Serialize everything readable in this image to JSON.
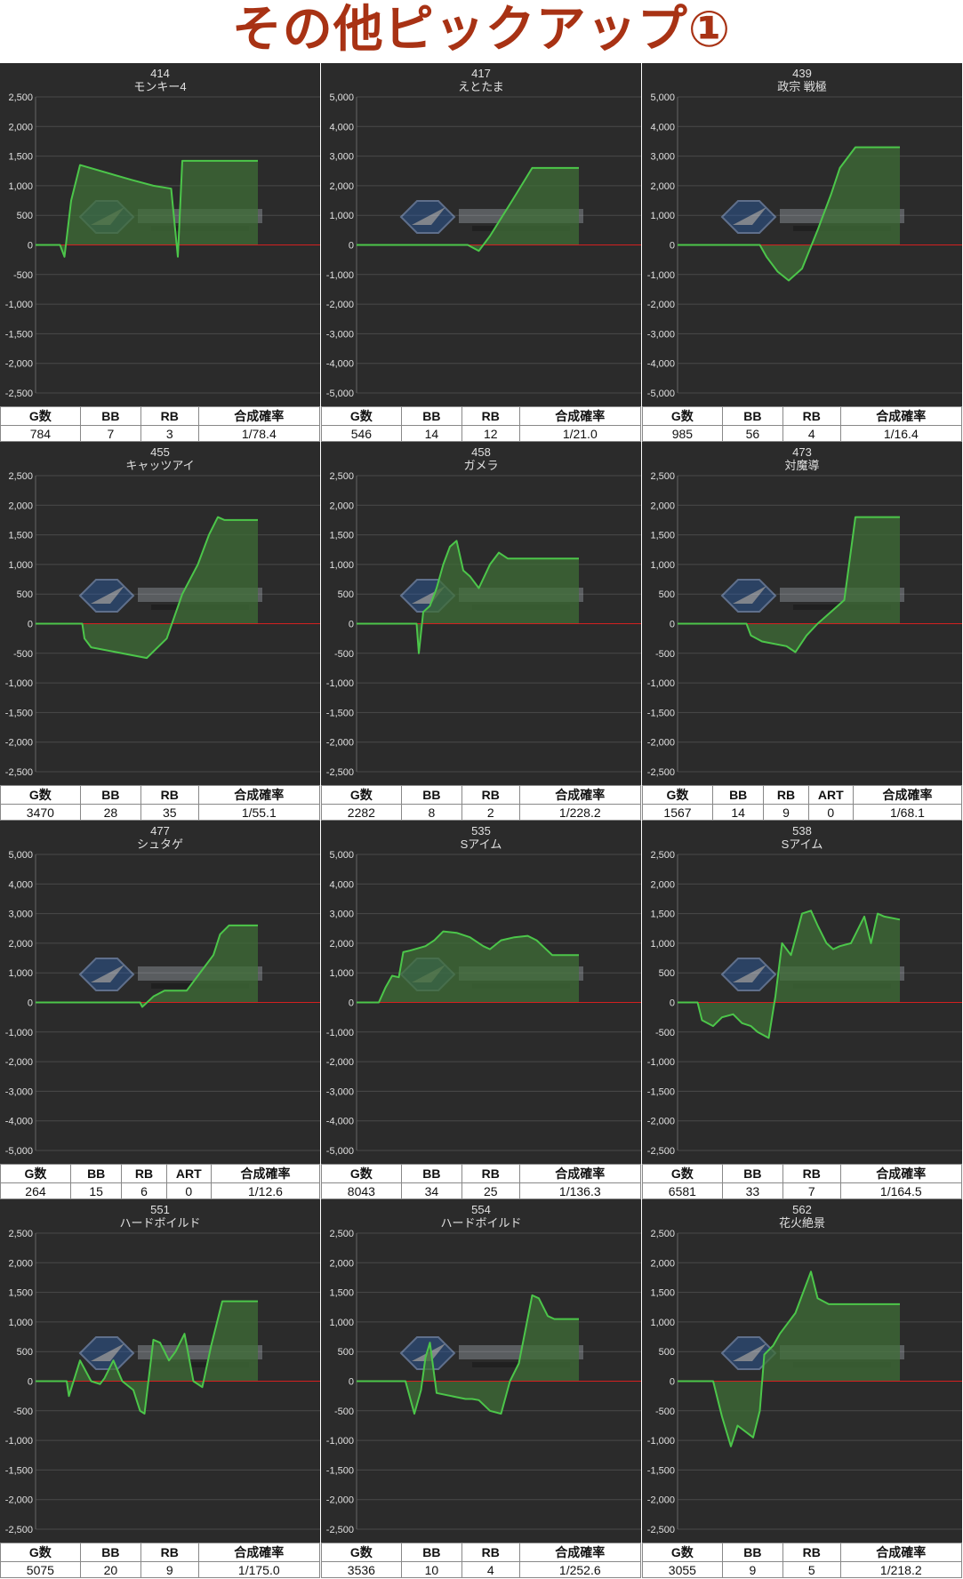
{
  "page": {
    "title": "その他ピックアップ①"
  },
  "colors": {
    "background": "#2b2b2b",
    "grid": "#4a4a4a",
    "line": "#4cc64a",
    "fill": "#3f6d37",
    "zero_line": "#d42020",
    "axis_text": "#e0e0e0"
  },
  "chart_data": [
    {
      "type": "area",
      "number": "414",
      "name": "モンキー4",
      "ylim": [
        -2500,
        2500
      ],
      "yticks": [
        "2,500",
        "2,000",
        "1,500",
        "1,000",
        "500",
        "0",
        "-500",
        "-1,000",
        "-1,500",
        "-2,000",
        "-2,500"
      ],
      "x": [
        0,
        0.09,
        0.11,
        0.13,
        0.16,
        0.2,
        0.43,
        0.53,
        0.61,
        0.64,
        0.66,
        1
      ],
      "values": [
        0,
        0,
        0,
        -200,
        750,
        1350,
        1100,
        1000,
        950,
        -200,
        1420,
        1420
      ],
      "stats": {
        "headers": [
          "G数",
          "BB",
          "RB",
          "合成確率"
        ],
        "values": [
          "784",
          "7",
          "3",
          "1/78.4"
        ]
      }
    },
    {
      "type": "area",
      "number": "417",
      "name": "えとたま",
      "ylim": [
        -5000,
        5000
      ],
      "yticks": [
        "5,000",
        "4,000",
        "3,000",
        "2,000",
        "1,000",
        "0",
        "-1,000",
        "-2,000",
        "-3,000",
        "-4,000",
        "-5,000"
      ],
      "x": [
        0,
        0.5,
        0.55,
        0.6,
        0.7,
        0.79,
        1
      ],
      "values": [
        0,
        0,
        -200,
        300,
        1500,
        2600,
        2600
      ],
      "stats": {
        "headers": [
          "G数",
          "BB",
          "RB",
          "合成確率"
        ],
        "values": [
          "546",
          "14",
          "12",
          "1/21.0"
        ]
      }
    },
    {
      "type": "area",
      "number": "439",
      "name": "政宗 戦極",
      "ylim": [
        -5000,
        5000
      ],
      "yticks": [
        "5,000",
        "4,000",
        "3,000",
        "2,000",
        "1,000",
        "0",
        "-1,000",
        "-2,000",
        "-3,000",
        "-4,000",
        "-5,000"
      ],
      "x": [
        0,
        0.37,
        0.4,
        0.45,
        0.5,
        0.56,
        0.63,
        0.69,
        0.73,
        0.8,
        1
      ],
      "values": [
        0,
        0,
        -400,
        -900,
        -1200,
        -800,
        500,
        1700,
        2600,
        3300,
        3300
      ],
      "stats": {
        "headers": [
          "G数",
          "BB",
          "RB",
          "合成確率"
        ],
        "values": [
          "985",
          "56",
          "4",
          "1/16.4"
        ]
      }
    },
    {
      "type": "area",
      "number": "455",
      "name": "キャッツアイ",
      "ylim": [
        -2500,
        2500
      ],
      "yticks": [
        "2,500",
        "2,000",
        "1,500",
        "1,000",
        "500",
        "0",
        "-500",
        "-1,000",
        "-1,500",
        "-2,000",
        "-2,500"
      ],
      "x": [
        0,
        0.21,
        0.22,
        0.25,
        0.5,
        0.59,
        0.66,
        0.73,
        0.78,
        0.82,
        0.85,
        1
      ],
      "values": [
        0,
        0,
        -250,
        -400,
        -580,
        -250,
        500,
        1000,
        1500,
        1800,
        1750,
        1750
      ],
      "stats": {
        "headers": [
          "G数",
          "BB",
          "RB",
          "合成確率"
        ],
        "values": [
          "3470",
          "28",
          "35",
          "1/55.1"
        ]
      }
    },
    {
      "type": "area",
      "number": "458",
      "name": "ガメラ",
      "ylim": [
        -2500,
        2500
      ],
      "yticks": [
        "2,500",
        "2,000",
        "1,500",
        "1,000",
        "500",
        "0",
        "-500",
        "-1,000",
        "-1,500",
        "-2,000",
        "-2,500"
      ],
      "x": [
        0,
        0.27,
        0.28,
        0.3,
        0.33,
        0.36,
        0.39,
        0.42,
        0.45,
        0.48,
        0.51,
        0.55,
        0.6,
        0.64,
        0.68,
        1
      ],
      "values": [
        0,
        0,
        -500,
        200,
        300,
        600,
        1000,
        1300,
        1400,
        900,
        800,
        600,
        1000,
        1200,
        1100,
        1100
      ],
      "stats": {
        "headers": [
          "G数",
          "BB",
          "RB",
          "合成確率"
        ],
        "values": [
          "2282",
          "8",
          "2",
          "1/228.2"
        ]
      }
    },
    {
      "type": "area",
      "number": "473",
      "name": "対魔導",
      "ylim": [
        -2500,
        2500
      ],
      "yticks": [
        "2,500",
        "2,000",
        "1,500",
        "1,000",
        "500",
        "0",
        "-500",
        "-1,000",
        "-1,500",
        "-2,000",
        "-2,500"
      ],
      "x": [
        0,
        0.31,
        0.33,
        0.38,
        0.49,
        0.53,
        0.58,
        0.63,
        0.69,
        0.75,
        0.8,
        1
      ],
      "values": [
        0,
        0,
        -200,
        -300,
        -380,
        -480,
        -200,
        0,
        200,
        400,
        1800,
        1800
      ],
      "stats": {
        "headers": [
          "G数",
          "BB",
          "RB",
          "ART",
          "合成確率"
        ],
        "values": [
          "1567",
          "14",
          "9",
          "0",
          "1/68.1"
        ]
      }
    },
    {
      "type": "area",
      "number": "477",
      "name": "シュタゲ",
      "ylim": [
        -5000,
        5000
      ],
      "yticks": [
        "5,000",
        "4,000",
        "3,000",
        "2,000",
        "1,000",
        "0",
        "-1,000",
        "-2,000",
        "-3,000",
        "-4,000",
        "-5,000"
      ],
      "x": [
        0,
        0.47,
        0.48,
        0.53,
        0.58,
        0.68,
        0.72,
        0.8,
        0.83,
        0.87,
        1
      ],
      "values": [
        0,
        0,
        -150,
        200,
        400,
        400,
        800,
        1600,
        2300,
        2600,
        2600
      ],
      "stats": {
        "headers": [
          "G数",
          "BB",
          "RB",
          "ART",
          "合成確率"
        ],
        "values": [
          "264",
          "15",
          "6",
          "0",
          "1/12.6"
        ]
      }
    },
    {
      "type": "area",
      "number": "535",
      "name": "Sアイム",
      "ylim": [
        -5000,
        5000
      ],
      "yticks": [
        "5,000",
        "4,000",
        "3,000",
        "2,000",
        "1,000",
        "0",
        "-1,000",
        "-2,000",
        "-3,000",
        "-4,000",
        "-5,000"
      ],
      "x": [
        0,
        0.1,
        0.13,
        0.16,
        0.19,
        0.21,
        0.24,
        0.31,
        0.35,
        0.39,
        0.45,
        0.51,
        0.57,
        0.6,
        0.65,
        0.71,
        0.77,
        0.81,
        0.88,
        1
      ],
      "values": [
        0,
        0,
        500,
        900,
        850,
        1700,
        1750,
        1900,
        2100,
        2400,
        2350,
        2200,
        1900,
        1800,
        2100,
        2200,
        2250,
        2100,
        1600,
        1600
      ],
      "stats": {
        "headers": [
          "G数",
          "BB",
          "RB",
          "合成確率"
        ],
        "values": [
          "8043",
          "34",
          "25",
          "1/136.3"
        ]
      }
    },
    {
      "type": "area",
      "number": "538",
      "name": "Sアイム",
      "ylim": [
        -2500,
        2500
      ],
      "yticks": [
        "2,500",
        "2,000",
        "1,500",
        "1,000",
        "500",
        "0",
        "-500",
        "-1,000",
        "-1,500",
        "-2,000",
        "-2,500"
      ],
      "x": [
        0,
        0.09,
        0.11,
        0.16,
        0.2,
        0.25,
        0.29,
        0.33,
        0.36,
        0.41,
        0.44,
        0.47,
        0.51,
        0.56,
        0.6,
        0.63,
        0.67,
        0.7,
        0.73,
        0.78,
        0.84,
        0.87,
        0.9,
        0.93,
        1
      ],
      "values": [
        0,
        0,
        -300,
        -400,
        -250,
        -200,
        -350,
        -400,
        -500,
        -600,
        100,
        1000,
        800,
        1500,
        1550,
        1300,
        1000,
        900,
        950,
        1000,
        1450,
        1000,
        1500,
        1450,
        1400
      ],
      "stats": {
        "headers": [
          "G数",
          "BB",
          "RB",
          "合成確率"
        ],
        "values": [
          "6581",
          "33",
          "7",
          "1/164.5"
        ]
      }
    },
    {
      "type": "area",
      "number": "551",
      "name": "ハードボイルド",
      "ylim": [
        -2500,
        2500
      ],
      "yticks": [
        "2,500",
        "2,000",
        "1,500",
        "1,000",
        "500",
        "0",
        "-500",
        "-1,000",
        "-1,500",
        "-2,000",
        "-2,500"
      ],
      "x": [
        0,
        0.14,
        0.15,
        0.2,
        0.25,
        0.29,
        0.31,
        0.35,
        0.39,
        0.44,
        0.47,
        0.49,
        0.53,
        0.56,
        0.6,
        0.63,
        0.67,
        0.71,
        0.75,
        0.79,
        0.84,
        1
      ],
      "values": [
        0,
        0,
        -250,
        350,
        0,
        -50,
        50,
        350,
        0,
        -150,
        -500,
        -550,
        700,
        650,
        350,
        500,
        800,
        0,
        -100,
        600,
        1350,
        1350
      ],
      "stats": {
        "headers": [
          "G数",
          "BB",
          "RB",
          "合成確率"
        ],
        "values": [
          "5075",
          "20",
          "9",
          "1/175.0"
        ]
      }
    },
    {
      "type": "area",
      "number": "554",
      "name": "ハードボイルド",
      "ylim": [
        -2500,
        2500
      ],
      "yticks": [
        "2,500",
        "2,000",
        "1,500",
        "1,000",
        "500",
        "0",
        "-500",
        "-1,000",
        "-1,500",
        "-2,000",
        "-2,500"
      ],
      "x": [
        0,
        0.22,
        0.26,
        0.29,
        0.31,
        0.33,
        0.36,
        0.49,
        0.52,
        0.55,
        0.6,
        0.65,
        0.69,
        0.73,
        0.79,
        0.82,
        0.86,
        0.89,
        1
      ],
      "values": [
        0,
        0,
        -550,
        -150,
        400,
        650,
        -200,
        -300,
        -300,
        -320,
        -500,
        -550,
        0,
        300,
        1450,
        1400,
        1100,
        1050,
        1050
      ],
      "stats": {
        "headers": [
          "G数",
          "BB",
          "RB",
          "合成確率"
        ],
        "values": [
          "3536",
          "10",
          "4",
          "1/252.6"
        ]
      }
    },
    {
      "type": "area",
      "number": "562",
      "name": "花火絶景",
      "ylim": [
        -2500,
        2500
      ],
      "yticks": [
        "2,500",
        "2,000",
        "1,500",
        "1,000",
        "500",
        "0",
        "-500",
        "-1,000",
        "-1,500",
        "-2,000",
        "-2,500"
      ],
      "x": [
        0,
        0.16,
        0.2,
        0.24,
        0.27,
        0.34,
        0.37,
        0.39,
        0.43,
        0.46,
        0.53,
        0.6,
        0.63,
        0.68,
        0.73,
        0.8,
        1
      ],
      "values": [
        0,
        0,
        -600,
        -1100,
        -750,
        -950,
        -500,
        450,
        600,
        800,
        1150,
        1850,
        1400,
        1300,
        1300,
        1300,
        1300
      ],
      "stats": {
        "headers": [
          "G数",
          "BB",
          "RB",
          "合成確率"
        ],
        "values": [
          "3055",
          "9",
          "5",
          "1/218.2"
        ]
      }
    }
  ]
}
